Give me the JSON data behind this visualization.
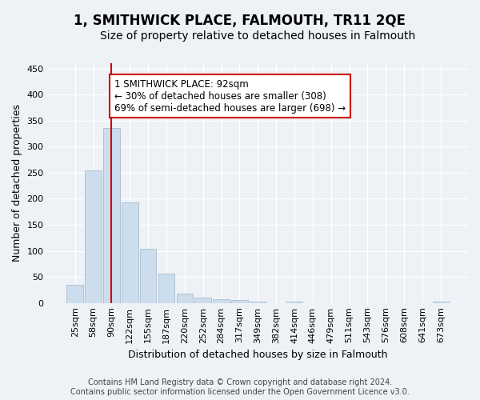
{
  "title": "1, SMITHWICK PLACE, FALMOUTH, TR11 2QE",
  "subtitle": "Size of property relative to detached houses in Falmouth",
  "xlabel": "Distribution of detached houses by size in Falmouth",
  "ylabel": "Number of detached properties",
  "footer_line1": "Contains HM Land Registry data © Crown copyright and database right 2024.",
  "footer_line2": "Contains public sector information licensed under the Open Government Licence v3.0.",
  "bins": [
    "25sqm",
    "58sqm",
    "90sqm",
    "122sqm",
    "155sqm",
    "187sqm",
    "220sqm",
    "252sqm",
    "284sqm",
    "317sqm",
    "349sqm",
    "382sqm",
    "414sqm",
    "446sqm",
    "479sqm",
    "511sqm",
    "543sqm",
    "576sqm",
    "608sqm",
    "641sqm",
    "673sqm"
  ],
  "values": [
    35,
    255,
    335,
    193,
    104,
    57,
    18,
    10,
    7,
    5,
    3,
    0,
    3,
    0,
    0,
    0,
    0,
    0,
    0,
    0,
    3
  ],
  "bar_color": "#ccdded",
  "bar_edge_color": "#aabbcc",
  "vline_x_idx": 2,
  "vline_color": "#cc0000",
  "ylim": [
    0,
    460
  ],
  "yticks": [
    0,
    50,
    100,
    150,
    200,
    250,
    300,
    350,
    400,
    450
  ],
  "annotation_line1": "1 SMITHWICK PLACE: 92sqm",
  "annotation_line2": "← 30% of detached houses are smaller (308)",
  "annotation_line3": "69% of semi-detached houses are larger (698) →",
  "annotation_box_color": "#ffffff",
  "annotation_box_edge": "#cc0000",
  "bg_color": "#eef2f7",
  "grid_color": "#ffffff",
  "title_fontsize": 12,
  "subtitle_fontsize": 10,
  "axis_label_fontsize": 9,
  "tick_fontsize": 8,
  "annotation_fontsize": 8.5,
  "footer_fontsize": 7
}
